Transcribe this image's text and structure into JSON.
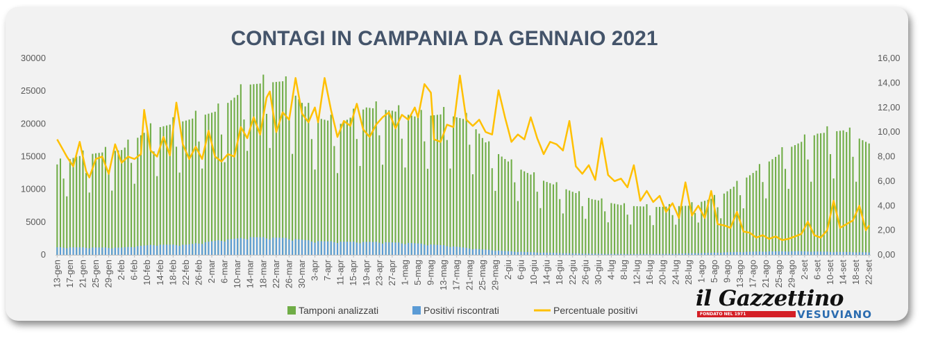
{
  "chart_data": {
    "type": "bar",
    "title": "CONTAGI IN CAMPANIA DA GENNAIO 2021",
    "start_date": "2021-01-13",
    "days": 253,
    "x_tick_labels": [
      "13-gen",
      "17-gen",
      "21-gen",
      "25-gen",
      "29-gen",
      "2-feb",
      "6-feb",
      "10-feb",
      "14-feb",
      "18-feb",
      "22-feb",
      "26-feb",
      "2-mar",
      "6-mar",
      "10-mar",
      "14-mar",
      "18-mar",
      "22-mar",
      "26-mar",
      "30-mar",
      "3-apr",
      "7-apr",
      "11-apr",
      "15-apr",
      "19-apr",
      "23-apr",
      "27-apr",
      "1-mag",
      "5-mag",
      "9-mag",
      "13-mag",
      "17-mag",
      "21-mag",
      "25-mag",
      "29-mag",
      "2-giu",
      "6-giu",
      "10-giu",
      "14-giu",
      "18-giu",
      "22-giu",
      "26-giu",
      "30-giu",
      "4-lug",
      "8-lug",
      "12-lug",
      "16-lug",
      "20-lug",
      "24-lug",
      "28-lug",
      "1-ago",
      "5-ago",
      "9-ago",
      "13-ago",
      "17-ago",
      "21-ago",
      "25-ago",
      "29-ago",
      "2-set",
      "6-set",
      "10-set",
      "14-set",
      "18-set",
      "22-set"
    ],
    "y_left": {
      "min": 0,
      "max": 30000,
      "ticks": [
        "0",
        "5000",
        "10000",
        "15000",
        "20000",
        "25000",
        "30000"
      ]
    },
    "y_right": {
      "min": 0,
      "max": 16,
      "ticks": [
        "0,00",
        "2,00",
        "4,00",
        "6,00",
        "8,00",
        "10,00",
        "12,00",
        "14,00",
        "16,00"
      ]
    },
    "grid": false,
    "legend_position": "bottom",
    "series": [
      {
        "name": "Tamponi analizzati",
        "kind": "bar",
        "color": "#70ad47",
        "keypoints": [
          [
            0,
            13800
          ],
          [
            6,
            15000
          ],
          [
            12,
            15500
          ],
          [
            20,
            16000
          ],
          [
            28,
            19000
          ],
          [
            40,
            20500
          ],
          [
            50,
            22000
          ],
          [
            60,
            26000
          ],
          [
            70,
            26500
          ],
          [
            80,
            21000
          ],
          [
            88,
            20000
          ],
          [
            96,
            22500
          ],
          [
            104,
            22000
          ],
          [
            112,
            21000
          ],
          [
            120,
            21500
          ],
          [
            128,
            20500
          ],
          [
            134,
            16500
          ],
          [
            142,
            13500
          ],
          [
            150,
            11500
          ],
          [
            158,
            10000
          ],
          [
            166,
            8500
          ],
          [
            176,
            7500
          ],
          [
            186,
            7300
          ],
          [
            196,
            7500
          ],
          [
            206,
            9000
          ],
          [
            216,
            12500
          ],
          [
            226,
            16000
          ],
          [
            236,
            18500
          ],
          [
            244,
            19000
          ],
          [
            252,
            17000
          ]
        ]
      },
      {
        "name": "Positivi riscontrati",
        "kind": "bar",
        "color": "#5b9bd5",
        "keypoints": [
          [
            0,
            1150
          ],
          [
            20,
            1100
          ],
          [
            30,
            1550
          ],
          [
            40,
            1550
          ],
          [
            50,
            2200
          ],
          [
            60,
            2700
          ],
          [
            70,
            2600
          ],
          [
            80,
            2100
          ],
          [
            90,
            2000
          ],
          [
            100,
            1950
          ],
          [
            110,
            1800
          ],
          [
            120,
            1450
          ],
          [
            130,
            900
          ],
          [
            140,
            550
          ],
          [
            150,
            350
          ],
          [
            160,
            230
          ],
          [
            170,
            150
          ],
          [
            180,
            130
          ],
          [
            190,
            170
          ],
          [
            200,
            270
          ],
          [
            210,
            420
          ],
          [
            220,
            520
          ],
          [
            230,
            560
          ],
          [
            240,
            470
          ],
          [
            252,
            370
          ]
        ]
      },
      {
        "name": "Percentuale positivi",
        "kind": "line",
        "color": "#ffc000",
        "axis": "right",
        "keypoints": [
          [
            0,
            9.4
          ],
          [
            3,
            8.0
          ],
          [
            5,
            7.2
          ],
          [
            7,
            9.2
          ],
          [
            9,
            6.8
          ],
          [
            10,
            6.3
          ],
          [
            12,
            7.8
          ],
          [
            14,
            8.0
          ],
          [
            16,
            6.6
          ],
          [
            18,
            9.0
          ],
          [
            20,
            7.5
          ],
          [
            22,
            8.0
          ],
          [
            24,
            7.8
          ],
          [
            26,
            8.2
          ],
          [
            27,
            11.8
          ],
          [
            29,
            8.5
          ],
          [
            31,
            8.0
          ],
          [
            33,
            9.6
          ],
          [
            35,
            8.1
          ],
          [
            37,
            12.4
          ],
          [
            39,
            9.0
          ],
          [
            41,
            7.8
          ],
          [
            43,
            8.8
          ],
          [
            45,
            7.8
          ],
          [
            47,
            10.1
          ],
          [
            49,
            8.0
          ],
          [
            51,
            7.6
          ],
          [
            53,
            8.2
          ],
          [
            55,
            8.0
          ],
          [
            57,
            10.4
          ],
          [
            59,
            9.5
          ],
          [
            61,
            11.2
          ],
          [
            63,
            9.8
          ],
          [
            65,
            12.8
          ],
          [
            66,
            13.3
          ],
          [
            68,
            10.0
          ],
          [
            70,
            11.6
          ],
          [
            72,
            11.0
          ],
          [
            74,
            14.4
          ],
          [
            76,
            11.5
          ],
          [
            78,
            10.8
          ],
          [
            80,
            12.0
          ],
          [
            81,
            10.8
          ],
          [
            83,
            14.4
          ],
          [
            85,
            11.8
          ],
          [
            87,
            9.6
          ],
          [
            89,
            10.9
          ],
          [
            91,
            10.5
          ],
          [
            93,
            12.3
          ],
          [
            95,
            10.2
          ],
          [
            97,
            9.6
          ],
          [
            99,
            10.6
          ],
          [
            101,
            11.2
          ],
          [
            103,
            11.6
          ],
          [
            105,
            10.3
          ],
          [
            107,
            11.4
          ],
          [
            109,
            11.0
          ],
          [
            111,
            12.0
          ],
          [
            112,
            11.2
          ],
          [
            114,
            13.9
          ],
          [
            116,
            13.2
          ],
          [
            117,
            9.4
          ],
          [
            119,
            9.2
          ],
          [
            121,
            10.6
          ],
          [
            123,
            10.4
          ],
          [
            125,
            14.6
          ],
          [
            127,
            11.0
          ],
          [
            129,
            10.5
          ],
          [
            131,
            11.0
          ],
          [
            133,
            10.0
          ],
          [
            135,
            9.8
          ],
          [
            137,
            13.4
          ],
          [
            139,
            11.2
          ],
          [
            141,
            9.2
          ],
          [
            143,
            9.8
          ],
          [
            145,
            9.4
          ],
          [
            147,
            11.2
          ],
          [
            149,
            9.5
          ],
          [
            151,
            8.2
          ],
          [
            153,
            9.2
          ],
          [
            155,
            9.0
          ],
          [
            157,
            8.5
          ],
          [
            159,
            10.9
          ],
          [
            161,
            7.2
          ],
          [
            163,
            6.6
          ],
          [
            165,
            7.3
          ],
          [
            167,
            6.1
          ],
          [
            169,
            9.5
          ],
          [
            171,
            6.5
          ],
          [
            173,
            6.0
          ],
          [
            175,
            6.2
          ],
          [
            177,
            5.5
          ],
          [
            179,
            7.3
          ],
          [
            181,
            4.4
          ],
          [
            183,
            5.2
          ],
          [
            185,
            4.3
          ],
          [
            187,
            4.8
          ],
          [
            189,
            3.5
          ],
          [
            191,
            4.2
          ],
          [
            193,
            3.0
          ],
          [
            195,
            5.9
          ],
          [
            197,
            3.2
          ],
          [
            199,
            4.0
          ],
          [
            201,
            3.0
          ],
          [
            203,
            5.2
          ],
          [
            205,
            2.5
          ],
          [
            207,
            2.4
          ],
          [
            209,
            2.2
          ],
          [
            211,
            3.5
          ],
          [
            213,
            1.9
          ],
          [
            215,
            1.8
          ],
          [
            217,
            1.4
          ],
          [
            219,
            1.6
          ],
          [
            221,
            1.3
          ],
          [
            223,
            1.5
          ],
          [
            225,
            1.2
          ],
          [
            227,
            1.3
          ],
          [
            229,
            1.5
          ],
          [
            231,
            1.7
          ],
          [
            233,
            2.7
          ],
          [
            235,
            1.6
          ],
          [
            237,
            1.4
          ],
          [
            239,
            2.0
          ],
          [
            241,
            4.4
          ],
          [
            243,
            2.2
          ],
          [
            245,
            2.5
          ],
          [
            247,
            2.8
          ],
          [
            249,
            4.0
          ],
          [
            251,
            2.0
          ],
          [
            252,
            2.4
          ]
        ]
      }
    ]
  },
  "legend": {
    "tamponi": "Tamponi analizzati",
    "positivi": "Positivi riscontrati",
    "percentuale": "Percentuale positivi"
  },
  "logo": {
    "main": "il Gazzettino",
    "founded": "FONDATO NEL 1971",
    "sub": "VESUVIANO"
  }
}
